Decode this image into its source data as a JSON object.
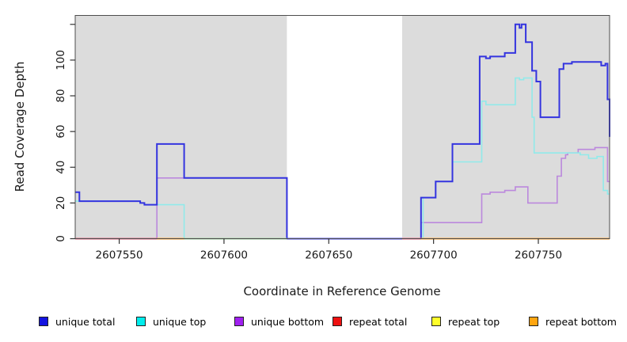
{
  "chart_data": {
    "type": "line",
    "title": "",
    "xlabel": "Coordinate in Reference Genome",
    "ylabel": "Read Coverage Depth",
    "xlim": [
      2607529,
      2607784
    ],
    "ylim": [
      0,
      125
    ],
    "x_ticks": [
      2607550,
      2607600,
      2607650,
      2607700,
      2607750
    ],
    "x_tick_labels": [
      "2607550",
      "2607600",
      "2607650",
      "2607700",
      "2607750"
    ],
    "y_ticks": [
      0,
      20,
      40,
      60,
      80,
      100,
      120
    ],
    "y_tick_labels": [
      "0",
      "20",
      "40",
      "60",
      "80",
      "100",
      ""
    ],
    "plot_background_color": "#DCDCDC",
    "masked_region": {
      "x1": 2607630,
      "x2": 2607685,
      "color": "#FFFFFF"
    },
    "series": [
      {
        "name": "repeat total",
        "legend_color": "#EE1111",
        "line_color": "#E0607E",
        "width": 1.8,
        "points": [
          [
            2607529,
            0
          ]
        ],
        "end": 2607784
      },
      {
        "name": "repeat top",
        "legend_color": "#FFFF2A",
        "line_color": "#FFFF2A",
        "width": 1.8,
        "points": [
          [
            2607529,
            0
          ]
        ],
        "end": 2607784
      },
      {
        "name": "repeat bottom",
        "legend_color": "#FFA510",
        "line_color": "#FFA22B",
        "width": 1.8,
        "points": [
          [
            2607529,
            0
          ]
        ],
        "end": 2607784
      },
      {
        "name": "unique bottom",
        "legend_color": "#A020F0",
        "line_color": "#BB88DD",
        "width": 1.6,
        "points": [
          [
            2607529,
            0
          ],
          [
            2607568,
            34
          ],
          [
            2607630,
            0
          ],
          [
            2607694,
            9
          ],
          [
            2607723,
            25
          ],
          [
            2607727,
            26
          ],
          [
            2607734,
            27
          ],
          [
            2607739,
            29
          ],
          [
            2607745,
            20
          ],
          [
            2607759,
            35
          ],
          [
            2607761,
            45
          ],
          [
            2607763,
            47
          ],
          [
            2607764,
            48
          ],
          [
            2607769,
            50
          ],
          [
            2607777,
            51
          ],
          [
            2607783,
            32
          ]
        ],
        "end": 2607784
      },
      {
        "name": "unique top",
        "legend_color": "#00EDED",
        "line_color": "#90EAEA",
        "width": 1.6,
        "points": [
          [
            2607529,
            21
          ],
          [
            2607560,
            20
          ],
          [
            2607562,
            19
          ],
          [
            2607581,
            0
          ],
          [
            2607695,
            23
          ],
          [
            2607701,
            32
          ],
          [
            2607709,
            43
          ],
          [
            2607723,
            77
          ],
          [
            2607725,
            75
          ],
          [
            2607739,
            90
          ],
          [
            2607741,
            89
          ],
          [
            2607743,
            90
          ],
          [
            2607747,
            68
          ],
          [
            2607748,
            48
          ],
          [
            2607770,
            47
          ],
          [
            2607774,
            45
          ],
          [
            2607778,
            46
          ],
          [
            2607781,
            27
          ],
          [
            2607783,
            25
          ]
        ],
        "end": 2607784
      },
      {
        "name": "unique total",
        "legend_color": "#1414E0",
        "line_color": "#3434DF",
        "width": 2,
        "points": [
          [
            2607529,
            26
          ],
          [
            2607531,
            21
          ],
          [
            2607560,
            20
          ],
          [
            2607562,
            19
          ],
          [
            2607568,
            53
          ],
          [
            2607581,
            34
          ],
          [
            2607630,
            0
          ],
          [
            2607694,
            23
          ],
          [
            2607701,
            32
          ],
          [
            2607709,
            53
          ],
          [
            2607722,
            102
          ],
          [
            2607725,
            101
          ],
          [
            2607727,
            102
          ],
          [
            2607734,
            104
          ],
          [
            2607739,
            120
          ],
          [
            2607741,
            118
          ],
          [
            2607742,
            120
          ],
          [
            2607744,
            110
          ],
          [
            2607747,
            94
          ],
          [
            2607749,
            88
          ],
          [
            2607751,
            68
          ],
          [
            2607760,
            95
          ],
          [
            2607762,
            98
          ],
          [
            2607766,
            99
          ],
          [
            2607780,
            97
          ],
          [
            2607782,
            98
          ],
          [
            2607783,
            78
          ],
          [
            2607784,
            57
          ]
        ],
        "end": 2607784
      }
    ],
    "baseline_segments": [
      {
        "x1": 2607529,
        "x2": 2607568,
        "color": "#E0607E"
      },
      {
        "x1": 2607568,
        "x2": 2607581,
        "color": "#FFA22B"
      },
      {
        "x1": 2607581,
        "x2": 2607630,
        "color": "#9CCF9C"
      },
      {
        "x1": 2607630,
        "x2": 2607685,
        "color": "#4848E8"
      },
      {
        "x1": 2607685,
        "x2": 2607694,
        "color": "#E0607E"
      },
      {
        "x1": 2607694,
        "x2": 2607784,
        "color": "#FFA22B"
      }
    ],
    "legend": [
      {
        "label": "unique total",
        "color": "#1414E0"
      },
      {
        "label": "unique top",
        "color": "#00EDED"
      },
      {
        "label": "unique bottom",
        "color": "#A020F0"
      },
      {
        "label": "repeat total",
        "color": "#EE1111"
      },
      {
        "label": "repeat top",
        "color": "#FFFF2A"
      },
      {
        "label": "repeat bottom",
        "color": "#FFA510"
      }
    ],
    "legend_position": "bottom"
  }
}
